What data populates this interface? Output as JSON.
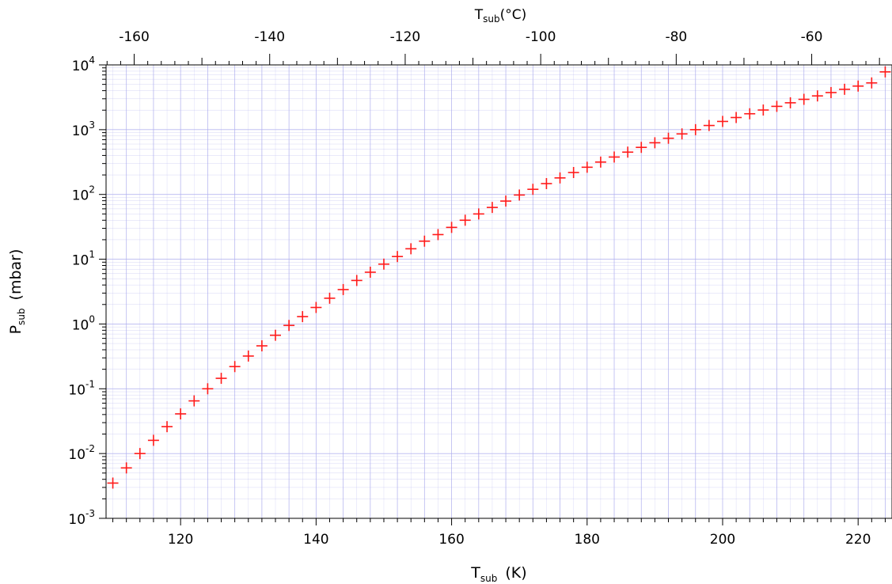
{
  "chart_data": {
    "type": "scatter",
    "title": "",
    "xlabel": "T",
    "xlabel_sub": "sub",
    "xlabel_unit": "(K)",
    "x2label": "T",
    "x2label_sub": "sub",
    "x2label_unit": "(°C)",
    "ylabel": "P",
    "ylabel_sub": "sub",
    "ylabel_unit": "(mbar)",
    "xlim": [
      109,
      225
    ],
    "x2lim": [
      -164.15,
      -48.15
    ],
    "ylim": [
      0.001,
      10000
    ],
    "yscale": "log",
    "grid": true,
    "legend": "none",
    "x_ticks": [
      120,
      140,
      160,
      180,
      200,
      220
    ],
    "x2_ticks": [
      -160,
      -140,
      -120,
      -100,
      -80,
      -60
    ],
    "y_tick_exponents": [
      -3,
      -2,
      -1,
      0,
      1,
      2,
      3,
      4
    ],
    "y_tick_base": "10",
    "marker": "plus",
    "colors": {
      "marker": "#ff1a1a",
      "grid": "#b0b0ee",
      "axis": "#000000"
    },
    "series": [
      {
        "x": [
          110,
          112,
          114,
          116,
          118,
          120,
          122,
          124,
          126,
          128,
          130,
          132,
          134,
          136,
          138,
          140,
          142,
          144,
          146,
          148,
          150,
          152,
          154,
          156,
          158,
          160,
          162,
          164,
          166,
          168,
          170,
          172,
          174,
          176,
          178,
          180,
          182,
          184,
          186,
          188,
          190,
          192,
          194,
          196,
          198,
          200,
          202,
          204,
          206,
          208,
          210,
          212,
          214,
          216,
          218,
          220,
          222,
          224
        ],
        "y": [
          0.0035,
          0.006,
          0.01,
          0.016,
          0.026,
          0.041,
          0.065,
          0.1,
          0.145,
          0.22,
          0.32,
          0.46,
          0.67,
          0.95,
          1.3,
          1.8,
          2.5,
          3.4,
          4.7,
          6.3,
          8.4,
          11,
          14.5,
          19,
          24,
          31,
          40,
          50,
          63,
          79,
          98,
          120,
          147,
          180,
          218,
          263,
          316,
          378,
          450,
          533,
          628,
          737,
          860,
          1000,
          1160,
          1340,
          1540,
          1760,
          2010,
          2290,
          2600,
          2940,
          3320,
          3740,
          4200,
          4710,
          5270,
          7800
        ]
      }
    ]
  }
}
